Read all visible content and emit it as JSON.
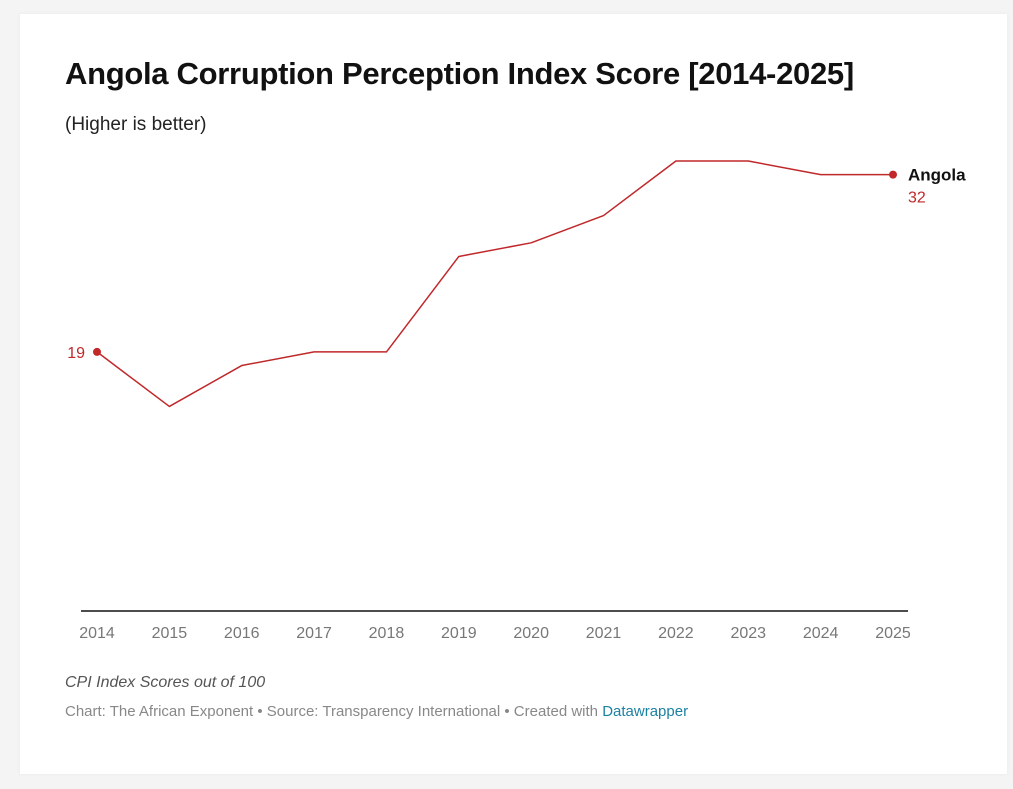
{
  "title": "Angola Corruption Perception Index Score [2014-2025]",
  "subtitle": "(Higher is better)",
  "notes": "CPI Index Scores out of 100",
  "byline": {
    "prefix": "Chart: The African Exponent • Source: Transparency International • Created with ",
    "link": "Datawrapper"
  },
  "colors": {
    "line": "#c0282a",
    "link": "#1d81a2",
    "axis": "#111111"
  },
  "chart_data": {
    "type": "line",
    "title": "Angola Corruption Perception Index Score [2014-2025]",
    "subtitle": "(Higher is better)",
    "x": [
      2014,
      2015,
      2016,
      2017,
      2018,
      2019,
      2020,
      2021,
      2022,
      2023,
      2024,
      2025
    ],
    "series": [
      {
        "name": "Angola",
        "values": [
          19,
          15,
          18,
          19,
          19,
          26,
          27,
          29,
          33,
          33,
          32,
          32
        ]
      }
    ],
    "ylim": [
      0,
      33
    ],
    "grid": false,
    "start_label": "19",
    "end_label": "32",
    "series_label": "Angola"
  }
}
